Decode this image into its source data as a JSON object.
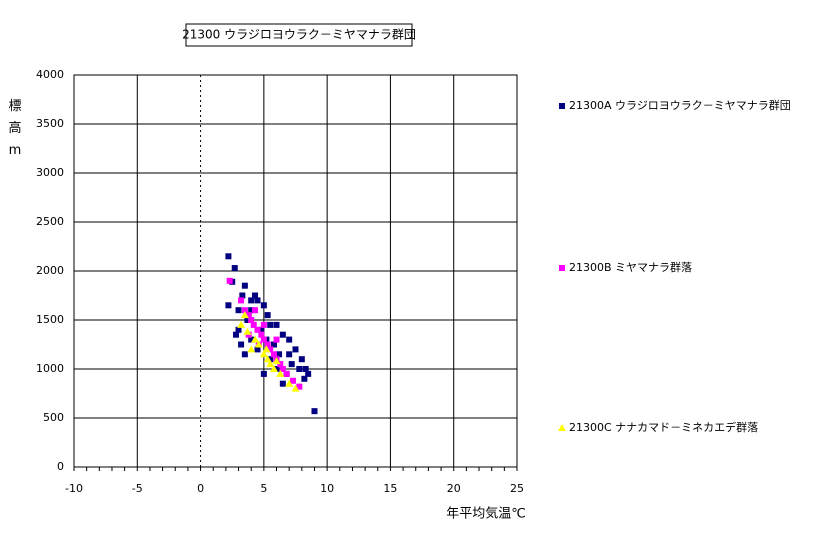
{
  "chart_data": {
    "type": "scatter",
    "title": "21300 ウラジロヨウラク－ミヤマナラ群団",
    "x_label": "年平均気温℃",
    "y_label": "標高m",
    "xlim": [
      -10,
      25
    ],
    "xticks": [
      -10,
      -5,
      0,
      5,
      10,
      15,
      20,
      25
    ],
    "ylim": [
      0,
      4000
    ],
    "yticks": [
      0,
      500,
      1000,
      1500,
      2000,
      2500,
      3000,
      3500,
      4000
    ],
    "grid": true,
    "legend": "right",
    "series": [
      {
        "name": "21300A ウラジロヨウラク－ミヤマナラ群団",
        "color": "#000080",
        "marker": "square",
        "x": [
          2.2,
          2.7,
          2.5,
          2.2,
          3.0,
          3.5,
          3.3,
          4.0,
          4.3,
          4.5,
          5.0,
          5.3,
          5.5,
          6.0,
          6.5,
          7.0,
          7.5,
          8.0,
          8.3,
          8.5,
          8.2,
          9.0,
          6.5,
          5.0,
          3.0,
          3.2,
          3.5,
          4.0,
          4.5,
          5.5,
          6.0,
          6.8,
          7.2,
          7.8,
          2.8,
          3.8,
          4.8,
          5.8,
          6.2,
          7.0,
          4.0,
          3.7,
          5.2
        ],
        "values": [
          2150,
          2030,
          1890,
          1650,
          1600,
          1850,
          1750,
          1700,
          1750,
          1700,
          1650,
          1550,
          1450,
          1450,
          1350,
          1300,
          1200,
          1100,
          1000,
          950,
          900,
          570,
          850,
          950,
          1400,
          1250,
          1150,
          1300,
          1200,
          1100,
          1000,
          950,
          1050,
          1000,
          1350,
          1550,
          1400,
          1250,
          1150,
          1150,
          1600,
          1500,
          1300
        ]
      },
      {
        "name": "21300B ミヤマナラ群落",
        "color": "#ff00ff",
        "marker": "square",
        "x": [
          2.3,
          3.2,
          3.5,
          3.8,
          4.0,
          4.2,
          4.5,
          4.8,
          5.0,
          5.3,
          5.5,
          5.8,
          6.0,
          6.3,
          6.5,
          6.8,
          7.3,
          7.8,
          4.3,
          5.0,
          3.8,
          6.0,
          4.6
        ],
        "values": [
          1900,
          1700,
          1600,
          1550,
          1500,
          1450,
          1400,
          1350,
          1300,
          1250,
          1200,
          1150,
          1100,
          1050,
          1000,
          950,
          880,
          820,
          1600,
          1450,
          1350,
          1300,
          1250
        ]
      },
      {
        "name": "21300C ナナカマド－ミネカエデ群落",
        "color": "#ffff00",
        "marker": "triangle",
        "x": [
          3.5,
          3.2,
          3.7,
          4.3,
          4.6,
          5.0,
          5.3,
          5.5,
          5.8,
          6.3,
          7.0,
          7.5,
          4.0,
          5.2,
          6.0
        ],
        "values": [
          1550,
          1450,
          1380,
          1300,
          1250,
          1150,
          1100,
          1050,
          1000,
          950,
          850,
          800,
          1200,
          1200,
          1080
        ]
      }
    ]
  }
}
